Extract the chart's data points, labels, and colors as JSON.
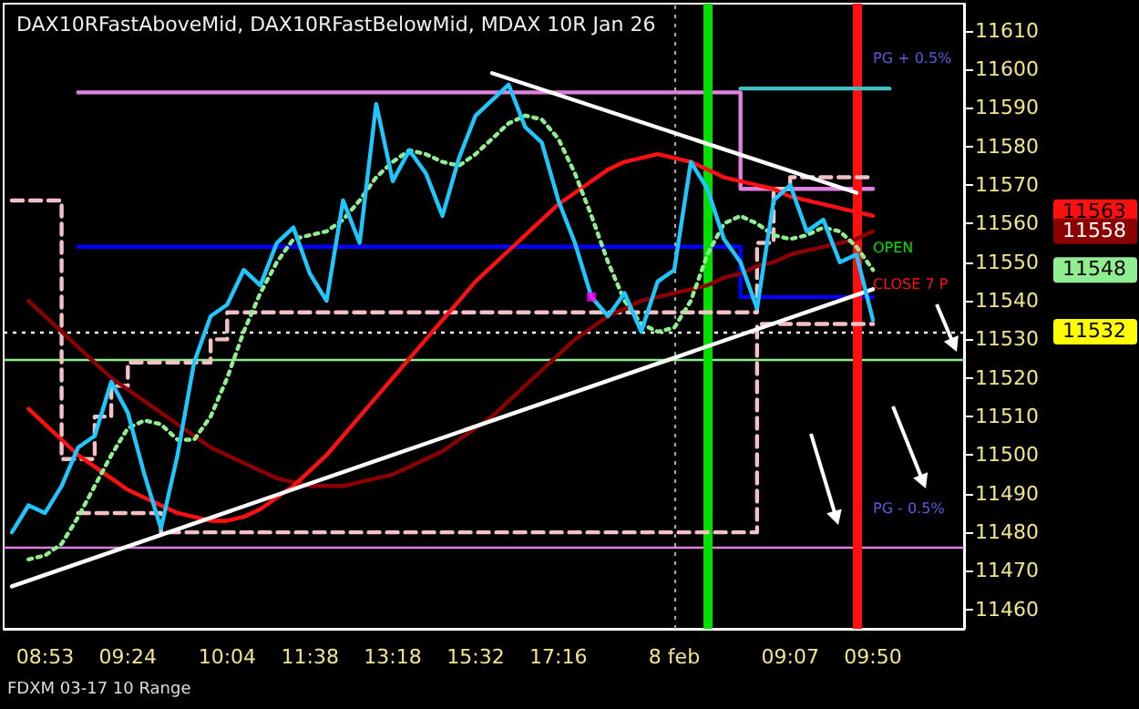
{
  "chart_data": {
    "type": "line",
    "title": "DAX10RFastAboveMid, DAX10RFastBelowMid, MDAX 10R Jan 26",
    "categories": [
      null,
      null,
      "08:53",
      null,
      null,
      null,
      null,
      "09:24",
      null,
      null,
      null,
      null,
      null,
      "10:04",
      null,
      null,
      null,
      null,
      "11:38",
      null,
      null,
      null,
      null,
      "13:18",
      null,
      null,
      null,
      null,
      "15:32",
      null,
      null,
      null,
      null,
      "17:16",
      null,
      null,
      null,
      null,
      null,
      null,
      "8 feb",
      null,
      null,
      null,
      null,
      null,
      null,
      "09:07",
      null,
      null,
      null,
      null,
      "09:50",
      null,
      null,
      null,
      null,
      null
    ],
    "ylim": [
      11455,
      11617
    ],
    "yticks": [
      11460,
      11470,
      11480,
      11490,
      11500,
      11510,
      11520,
      11530,
      11540,
      11550,
      11560,
      11570,
      11580,
      11590,
      11600,
      11610
    ],
    "grid": false,
    "marker": "none",
    "series": [
      {
        "type": "step",
        "color": "#e080e0",
        "values": [
          null,
          null,
          null,
          null,
          11594,
          11594,
          11594,
          11594,
          11594,
          11594,
          11594,
          11594,
          11594,
          11594,
          11594,
          11594,
          11594,
          11594,
          11594,
          11594,
          11594,
          11594,
          11594,
          11594,
          11594,
          11594,
          11594,
          11594,
          11594,
          11594,
          11594,
          11594,
          11594,
          11594,
          11594,
          11594,
          11594,
          11594,
          11594,
          11594,
          11594,
          11594,
          11594,
          11594,
          11569,
          11569,
          11569,
          11569,
          11569,
          11569,
          11569,
          11569,
          11569,
          null,
          null,
          null,
          null,
          null
        ]
      },
      {
        "type": "step",
        "color": "#0000ff",
        "values": [
          null,
          null,
          null,
          null,
          11554,
          11554,
          11554,
          11554,
          11554,
          11554,
          11554,
          11554,
          11554,
          11554,
          11554,
          11554,
          11554,
          11554,
          11554,
          11554,
          11554,
          11554,
          11554,
          11554,
          11554,
          11554,
          11554,
          11554,
          11554,
          11554,
          11554,
          11554,
          11554,
          11554,
          11554,
          11554,
          11554,
          11554,
          11554,
          11554,
          11554,
          11554,
          11554,
          11554,
          11541,
          11541,
          11541,
          11541,
          11541,
          11541,
          11541,
          11541,
          11541,
          null,
          null,
          null,
          null,
          null
        ]
      },
      {
        "type": "step",
        "color": "#40c0c0",
        "values": [
          null,
          null,
          null,
          null,
          null,
          null,
          null,
          null,
          null,
          null,
          null,
          null,
          null,
          null,
          null,
          null,
          null,
          null,
          null,
          null,
          null,
          null,
          null,
          null,
          null,
          null,
          null,
          null,
          null,
          null,
          null,
          null,
          null,
          null,
          null,
          null,
          null,
          null,
          null,
          null,
          null,
          null,
          null,
          null,
          11595,
          11595,
          11595,
          11595,
          11595,
          11595,
          11595,
          11595,
          11595,
          11595,
          null,
          null,
          null,
          null
        ]
      },
      {
        "type": "step",
        "color": "#f4c0c8",
        "line_style": "dashed",
        "values": [
          11566,
          11566,
          11566,
          11499,
          11499,
          11510,
          11518,
          11524,
          11524,
          11524,
          11524,
          11524,
          11530,
          11537,
          11537,
          11537,
          11537,
          11537,
          11537,
          11537,
          11537,
          11537,
          11537,
          11537,
          11537,
          11537,
          11537,
          11537,
          11537,
          11537,
          11537,
          11537,
          11537,
          11537,
          11537,
          11537,
          11537,
          11537,
          11537,
          11537,
          11537,
          11537,
          11537,
          11537,
          11537,
          11555,
          11569,
          11572,
          11572,
          11572,
          11572,
          11572,
          11572,
          null,
          null,
          null,
          null,
          null
        ]
      },
      {
        "type": "step",
        "color": "#f4c0c8",
        "line_style": "dashed",
        "values": [
          null,
          null,
          null,
          null,
          11485,
          11485,
          11485,
          11485,
          11485,
          11480,
          11480,
          11480,
          11480,
          11480,
          11480,
          11480,
          11480,
          11480,
          11480,
          11480,
          11480,
          11480,
          11480,
          11480,
          11480,
          11480,
          11480,
          11480,
          11480,
          11480,
          11480,
          11480,
          11480,
          11480,
          11480,
          11480,
          11480,
          11480,
          11480,
          11480,
          11480,
          11480,
          11480,
          11480,
          11480,
          11534,
          11534,
          11534,
          11534,
          11534,
          11534,
          11534,
          11534,
          null,
          null,
          null,
          null,
          null
        ]
      },
      {
        "color": "#8b0000",
        "values": [
          null,
          11540,
          11536,
          11532,
          11528,
          11524,
          11520,
          11517,
          11514,
          11511,
          11508,
          11505,
          11502,
          11500,
          11498,
          11496,
          11494,
          11493,
          11492,
          11492,
          11492,
          11493,
          11494,
          11495,
          11497,
          11499,
          11501,
          11504,
          11507,
          11510,
          11514,
          11518,
          11522,
          11526,
          11530,
          11533,
          11536,
          11538,
          11540,
          11541,
          11542,
          11543,
          11544,
          11546,
          11547,
          11549,
          11550,
          11552,
          11553,
          11554,
          11555,
          11556,
          11558,
          null,
          null,
          null,
          null,
          null
        ]
      },
      {
        "color": "#ff1010",
        "values": [
          null,
          11512,
          11508,
          11504,
          11500,
          11497,
          11494,
          11491,
          11489,
          11487,
          11485,
          11484,
          11483,
          11483,
          11484,
          11486,
          11489,
          11492,
          11496,
          11500,
          11505,
          11510,
          11515,
          11520,
          11525,
          11530,
          11535,
          11540,
          11545,
          11549,
          11553,
          11557,
          11561,
          11565,
          11568,
          11571,
          11574,
          11576,
          11577,
          11578,
          11577,
          11576,
          11574,
          11572,
          11571,
          11570,
          11569,
          11567,
          11566,
          11565,
          11564,
          11563,
          11562,
          null,
          null,
          null,
          null,
          null
        ]
      },
      {
        "type": "line",
        "color": "#90ee90",
        "line_style": "dotted",
        "values": [
          null,
          11473,
          11474,
          11477,
          11484,
          11492,
          11500,
          11507,
          11509,
          11508,
          11504,
          11504,
          11510,
          11520,
          11532,
          11542,
          11550,
          11556,
          11557,
          11558,
          11561,
          11566,
          11572,
          11576,
          11579,
          11578,
          11576,
          11575,
          11578,
          11582,
          11586,
          11588,
          11587,
          11582,
          11573,
          11562,
          11550,
          11540,
          11534,
          11532,
          11533,
          11540,
          11552,
          11560,
          11562,
          11560,
          11557,
          11556,
          11557,
          11559,
          11558,
          11554,
          11548,
          null,
          null,
          null,
          null,
          null
        ]
      },
      {
        "type": "line",
        "color": "#ffffff",
        "values": [
          11466,
          null,
          null,
          null,
          null,
          null,
          null,
          null,
          null,
          null,
          null,
          null,
          null,
          null,
          null,
          null,
          null,
          null,
          null,
          null,
          null,
          null,
          null,
          null,
          null,
          null,
          null,
          null,
          null,
          null,
          null,
          null,
          null,
          null,
          null,
          null,
          null,
          null,
          null,
          null,
          null,
          null,
          null,
          null,
          null,
          null,
          null,
          null,
          null,
          null,
          null,
          null,
          11543,
          null,
          null,
          null,
          null,
          null
        ]
      },
      {
        "type": "line",
        "color": "#ffffff",
        "values": [
          null,
          null,
          null,
          null,
          null,
          null,
          null,
          null,
          null,
          null,
          null,
          null,
          null,
          null,
          null,
          null,
          null,
          null,
          null,
          null,
          null,
          null,
          null,
          null,
          null,
          null,
          null,
          null,
          null,
          11599,
          null,
          null,
          null,
          null,
          null,
          null,
          null,
          null,
          null,
          null,
          null,
          null,
          null,
          null,
          null,
          null,
          null,
          null,
          null,
          null,
          null,
          11568,
          null,
          null,
          null,
          null,
          null,
          null
        ]
      },
      {
        "color": "#1ec8ff",
        "values": [
          11480,
          11487,
          11485,
          11492,
          11502,
          11505,
          11519,
          11511,
          11495,
          11481,
          11500,
          11524,
          11536,
          11539,
          11548,
          11544,
          11555,
          11559,
          11547,
          11540,
          11566,
          11555,
          11591,
          11571,
          11579,
          11573,
          11562,
          11577,
          11588,
          11592,
          11596,
          11585,
          11581,
          11566,
          11555,
          11541,
          11536,
          11542,
          11532,
          11545,
          11548,
          11576,
          11569,
          11556,
          11550,
          11538,
          11566,
          11570,
          11558,
          11561,
          11550,
          11552,
          11535,
          null,
          null,
          null,
          null,
          null
        ]
      },
      {
        "type": "scatter",
        "color": "#ff00ff",
        "marker": "square",
        "values": [
          null,
          null,
          null,
          null,
          null,
          null,
          null,
          null,
          null,
          null,
          null,
          null,
          null,
          null,
          null,
          null,
          null,
          null,
          null,
          null,
          null,
          null,
          null,
          null,
          null,
          null,
          null,
          null,
          null,
          null,
          null,
          null,
          null,
          null,
          null,
          11541,
          null,
          null,
          null,
          null,
          null,
          null,
          null,
          null,
          null,
          null,
          null,
          null,
          null,
          null,
          null,
          null,
          null,
          null,
          null,
          null,
          null,
          null
        ]
      }
    ],
    "ref_lines": [
      {
        "axis": "y",
        "value": 11532,
        "color": "#ffffff",
        "line_style": "dotted"
      },
      {
        "axis": "y",
        "value": 11525,
        "color": "#90ee90",
        "line_style": "solid"
      },
      {
        "axis": "y",
        "value": 11476,
        "color": "#e080e0",
        "line_style": "solid"
      }
    ],
    "annotations": [
      "PG + 0.5%",
      "OPEN",
      "CLOSE 7 P",
      "PG - 0.5%",
      "11563",
      "11558",
      "11548",
      "11532",
      "FDXM 03-17 10 Range"
    ]
  }
}
